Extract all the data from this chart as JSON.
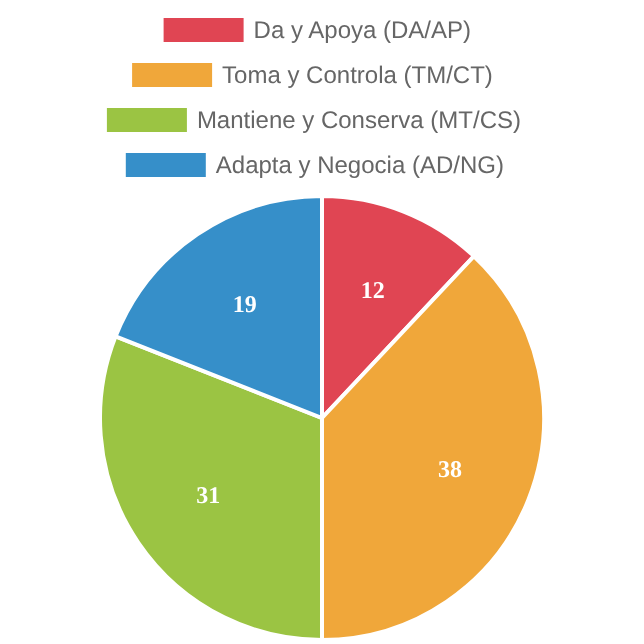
{
  "chart_data": {
    "type": "pie",
    "categories": [
      "Da y Apoya (DA/AP)",
      "Toma y Controla (TM/CT)",
      "Mantiene y Conserva (MT/CS)",
      "Adapta y Negocia (AD/NG)"
    ],
    "values": [
      12,
      38,
      31,
      19
    ],
    "colors": [
      "#e04553",
      "#f0a73a",
      "#9bc443",
      "#368fc9"
    ],
    "data_labels": true,
    "legend": "top"
  }
}
